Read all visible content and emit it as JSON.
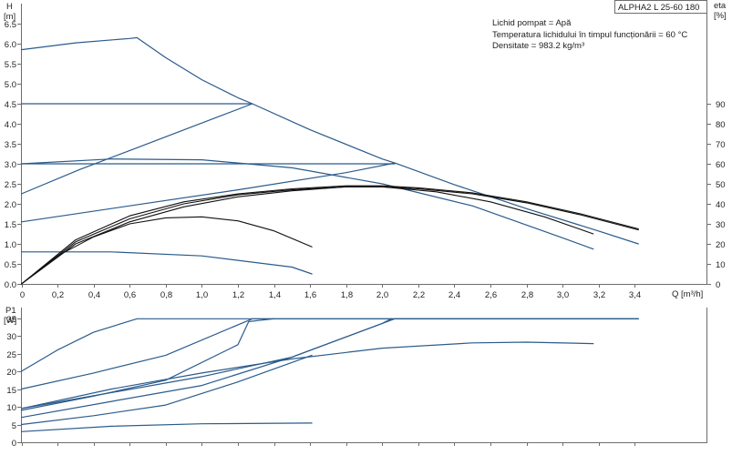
{
  "chart_data": [
    {
      "type": "line",
      "name": "pump-curve",
      "title_box": "ALPHA2 L 25-60 180",
      "info": [
        "Lichid pompat = Apă",
        "Temperatura lichidului în timpul funcționării = 60 °C",
        "Densitate = 983.2 kg/m³"
      ],
      "x_label": "Q [m³/h]",
      "y_left_label": [
        "H",
        "[m]"
      ],
      "y_right_label": [
        "eta",
        "[%]"
      ],
      "xlim": [
        0,
        3.8
      ],
      "ylim": [
        0,
        7.0
      ],
      "y2lim": [
        0,
        140
      ],
      "x_ticks": [
        0,
        0.2,
        0.4,
        0.6,
        0.8,
        1.0,
        1.2,
        1.4,
        1.6,
        1.8,
        2.0,
        2.2,
        2.4,
        2.6,
        2.8,
        3.0,
        3.2,
        3.4
      ],
      "x_tick_labels": [
        "0",
        "0,2",
        "0,4",
        "0,6",
        "0,8",
        "1,0",
        "1,2",
        "1,4",
        "1,6",
        "1,8",
        "2,0",
        "2,2",
        "2,4",
        "2,6",
        "2,8",
        "3,0",
        "3,2",
        "3,4"
      ],
      "y_ticks": [
        0,
        0.5,
        1.0,
        1.5,
        2.0,
        2.5,
        3.0,
        3.5,
        4.0,
        4.5,
        5.0,
        5.5,
        6.0,
        6.5
      ],
      "y_tick_labels": [
        "0.0",
        "0.5",
        "1.0",
        "1.5",
        "2.0",
        "2.5",
        "3.0",
        "3.5",
        "4.0",
        "4.5",
        "5.0",
        "5.5",
        "6.0",
        "6.5"
      ],
      "y2_ticks": [
        0,
        10,
        20,
        30,
        40,
        50,
        60,
        70,
        80,
        90
      ],
      "y2_tick_labels": [
        "0",
        "10",
        "20",
        "30",
        "40",
        "50",
        "60",
        "70",
        "80",
        "90"
      ],
      "colors": {
        "head": "#2a5b8c",
        "efficiency": "#111111"
      },
      "head_series": [
        {
          "x": [
            0,
            0.3,
            0.6,
            0.64,
            0.8,
            1.0,
            1.2,
            1.28,
            1.6,
            2.0,
            2.07,
            2.4,
            2.8,
            3.2,
            3.42
          ],
          "y": [
            5.85,
            6.02,
            6.13,
            6.15,
            5.65,
            5.1,
            4.65,
            4.5,
            3.85,
            3.12,
            3.02,
            2.48,
            1.88,
            1.32,
            1.0
          ]
        },
        {
          "x": [
            0,
            0.2,
            0.4,
            0.6,
            0.8,
            1.0,
            1.2,
            1.28
          ],
          "y": [
            4.5,
            4.5,
            4.5,
            4.5,
            4.5,
            4.5,
            4.5,
            4.5
          ]
        },
        {
          "x": [
            0,
            0.5,
            1.0,
            1.5,
            2.07
          ],
          "y": [
            3.0,
            3.0,
            3.0,
            3.0,
            3.0
          ]
        },
        {
          "x": [
            0,
            0.5,
            1.0,
            1.5,
            2.0,
            2.5,
            3.0,
            3.17
          ],
          "y": [
            3.0,
            3.12,
            3.1,
            2.9,
            2.5,
            1.95,
            1.15,
            0.87
          ]
        },
        {
          "x": [
            0,
            0.5,
            1.0,
            1.5,
            1.61
          ],
          "y": [
            0.8,
            0.8,
            0.7,
            0.42,
            0.25
          ]
        },
        {
          "x": [
            0,
            0.32,
            0.64,
            0.96,
            1.28
          ],
          "y": [
            2.25,
            2.85,
            3.4,
            3.95,
            4.5
          ]
        },
        {
          "x": [
            0,
            0.6,
            1.2,
            1.8,
            2.07
          ],
          "y": [
            1.55,
            1.95,
            2.35,
            2.78,
            3.02
          ]
        }
      ],
      "efficiency_series": [
        {
          "x": [
            0,
            0.3,
            0.6,
            0.9,
            1.2,
            1.5,
            1.8,
            2.0,
            2.2,
            2.5,
            2.8,
            3.1,
            3.42
          ],
          "y": [
            0,
            22,
            34,
            41,
            45,
            47.5,
            49,
            49,
            48,
            45.5,
            41,
            35,
            27.5
          ]
        },
        {
          "x": [
            0,
            0.3,
            0.6,
            0.9,
            1.2,
            1.5,
            1.8,
            2.0,
            2.2,
            2.5,
            2.8,
            3.1,
            3.42
          ],
          "y": [
            0,
            21,
            32.5,
            40,
            44.5,
            47,
            48.5,
            48.5,
            47.5,
            45,
            40.5,
            34.5,
            27
          ]
        },
        {
          "x": [
            0,
            0.3,
            0.6,
            0.9,
            1.2,
            1.5,
            1.8,
            2.0,
            2.3,
            2.6,
            2.9,
            3.17
          ],
          "y": [
            0,
            20,
            31,
            38.5,
            43.5,
            46.5,
            48.5,
            48.5,
            46,
            41,
            33.5,
            25
          ]
        },
        {
          "x": [
            0,
            0.2,
            0.4,
            0.6,
            0.8,
            1.0,
            1.2,
            1.4,
            1.61
          ],
          "y": [
            0,
            14,
            23.5,
            30,
            33,
            33.5,
            31.5,
            26.5,
            18.5
          ]
        }
      ]
    },
    {
      "type": "line",
      "name": "power-curve",
      "y_label": [
        "P1",
        "[W]"
      ],
      "xlim": [
        0,
        3.8
      ],
      "ylim": [
        0,
        40
      ],
      "y_ticks": [
        0,
        5,
        10,
        15,
        20,
        25,
        30,
        35
      ],
      "y_tick_labels": [
        "0",
        "5",
        "10",
        "15",
        "20",
        "25",
        "30",
        "35"
      ],
      "colors": {
        "power": "#2a5b8c"
      },
      "power_series": [
        {
          "x": [
            0,
            0.2,
            0.4,
            0.64,
            1.0,
            2.0,
            3.0,
            3.42
          ],
          "y": [
            20,
            26,
            31,
            34.8,
            34.8,
            34.8,
            34.8,
            34.8
          ]
        },
        {
          "x": [
            0,
            0.4,
            0.8,
            1.28,
            2.0,
            3.0,
            3.42
          ],
          "y": [
            15,
            19.5,
            24.5,
            34.8,
            34.8,
            34.8,
            34.8
          ]
        },
        {
          "x": [
            0,
            0.4,
            0.8,
            1.2,
            1.26,
            1.4
          ],
          "y": [
            9,
            13,
            17.5,
            27.5,
            34,
            34.8
          ]
        },
        {
          "x": [
            0,
            0.5,
            1.0,
            1.5,
            2.07,
            2.5,
            3.0,
            3.42
          ],
          "y": [
            9.5,
            14,
            18.5,
            24,
            34.8,
            34.8,
            34.8,
            34.8
          ]
        },
        {
          "x": [
            0,
            0.5,
            1.0,
            1.5,
            2.0,
            2.05
          ],
          "y": [
            7,
            11.5,
            16,
            24,
            33.5,
            34.8
          ]
        },
        {
          "x": [
            0,
            0.5,
            1.0,
            1.5,
            2.0,
            2.5,
            2.8,
            3.17
          ],
          "y": [
            9.5,
            15,
            19.5,
            23.5,
            26.5,
            28,
            28.2,
            27.8
          ]
        },
        {
          "x": [
            0,
            0.5,
            1.0,
            1.61
          ],
          "y": [
            3,
            4.5,
            5.2,
            5.4
          ]
        },
        {
          "x": [
            0,
            0.4,
            0.8,
            1.2,
            1.61
          ],
          "y": [
            5,
            7.5,
            10.5,
            17,
            24.5
          ]
        }
      ]
    }
  ]
}
